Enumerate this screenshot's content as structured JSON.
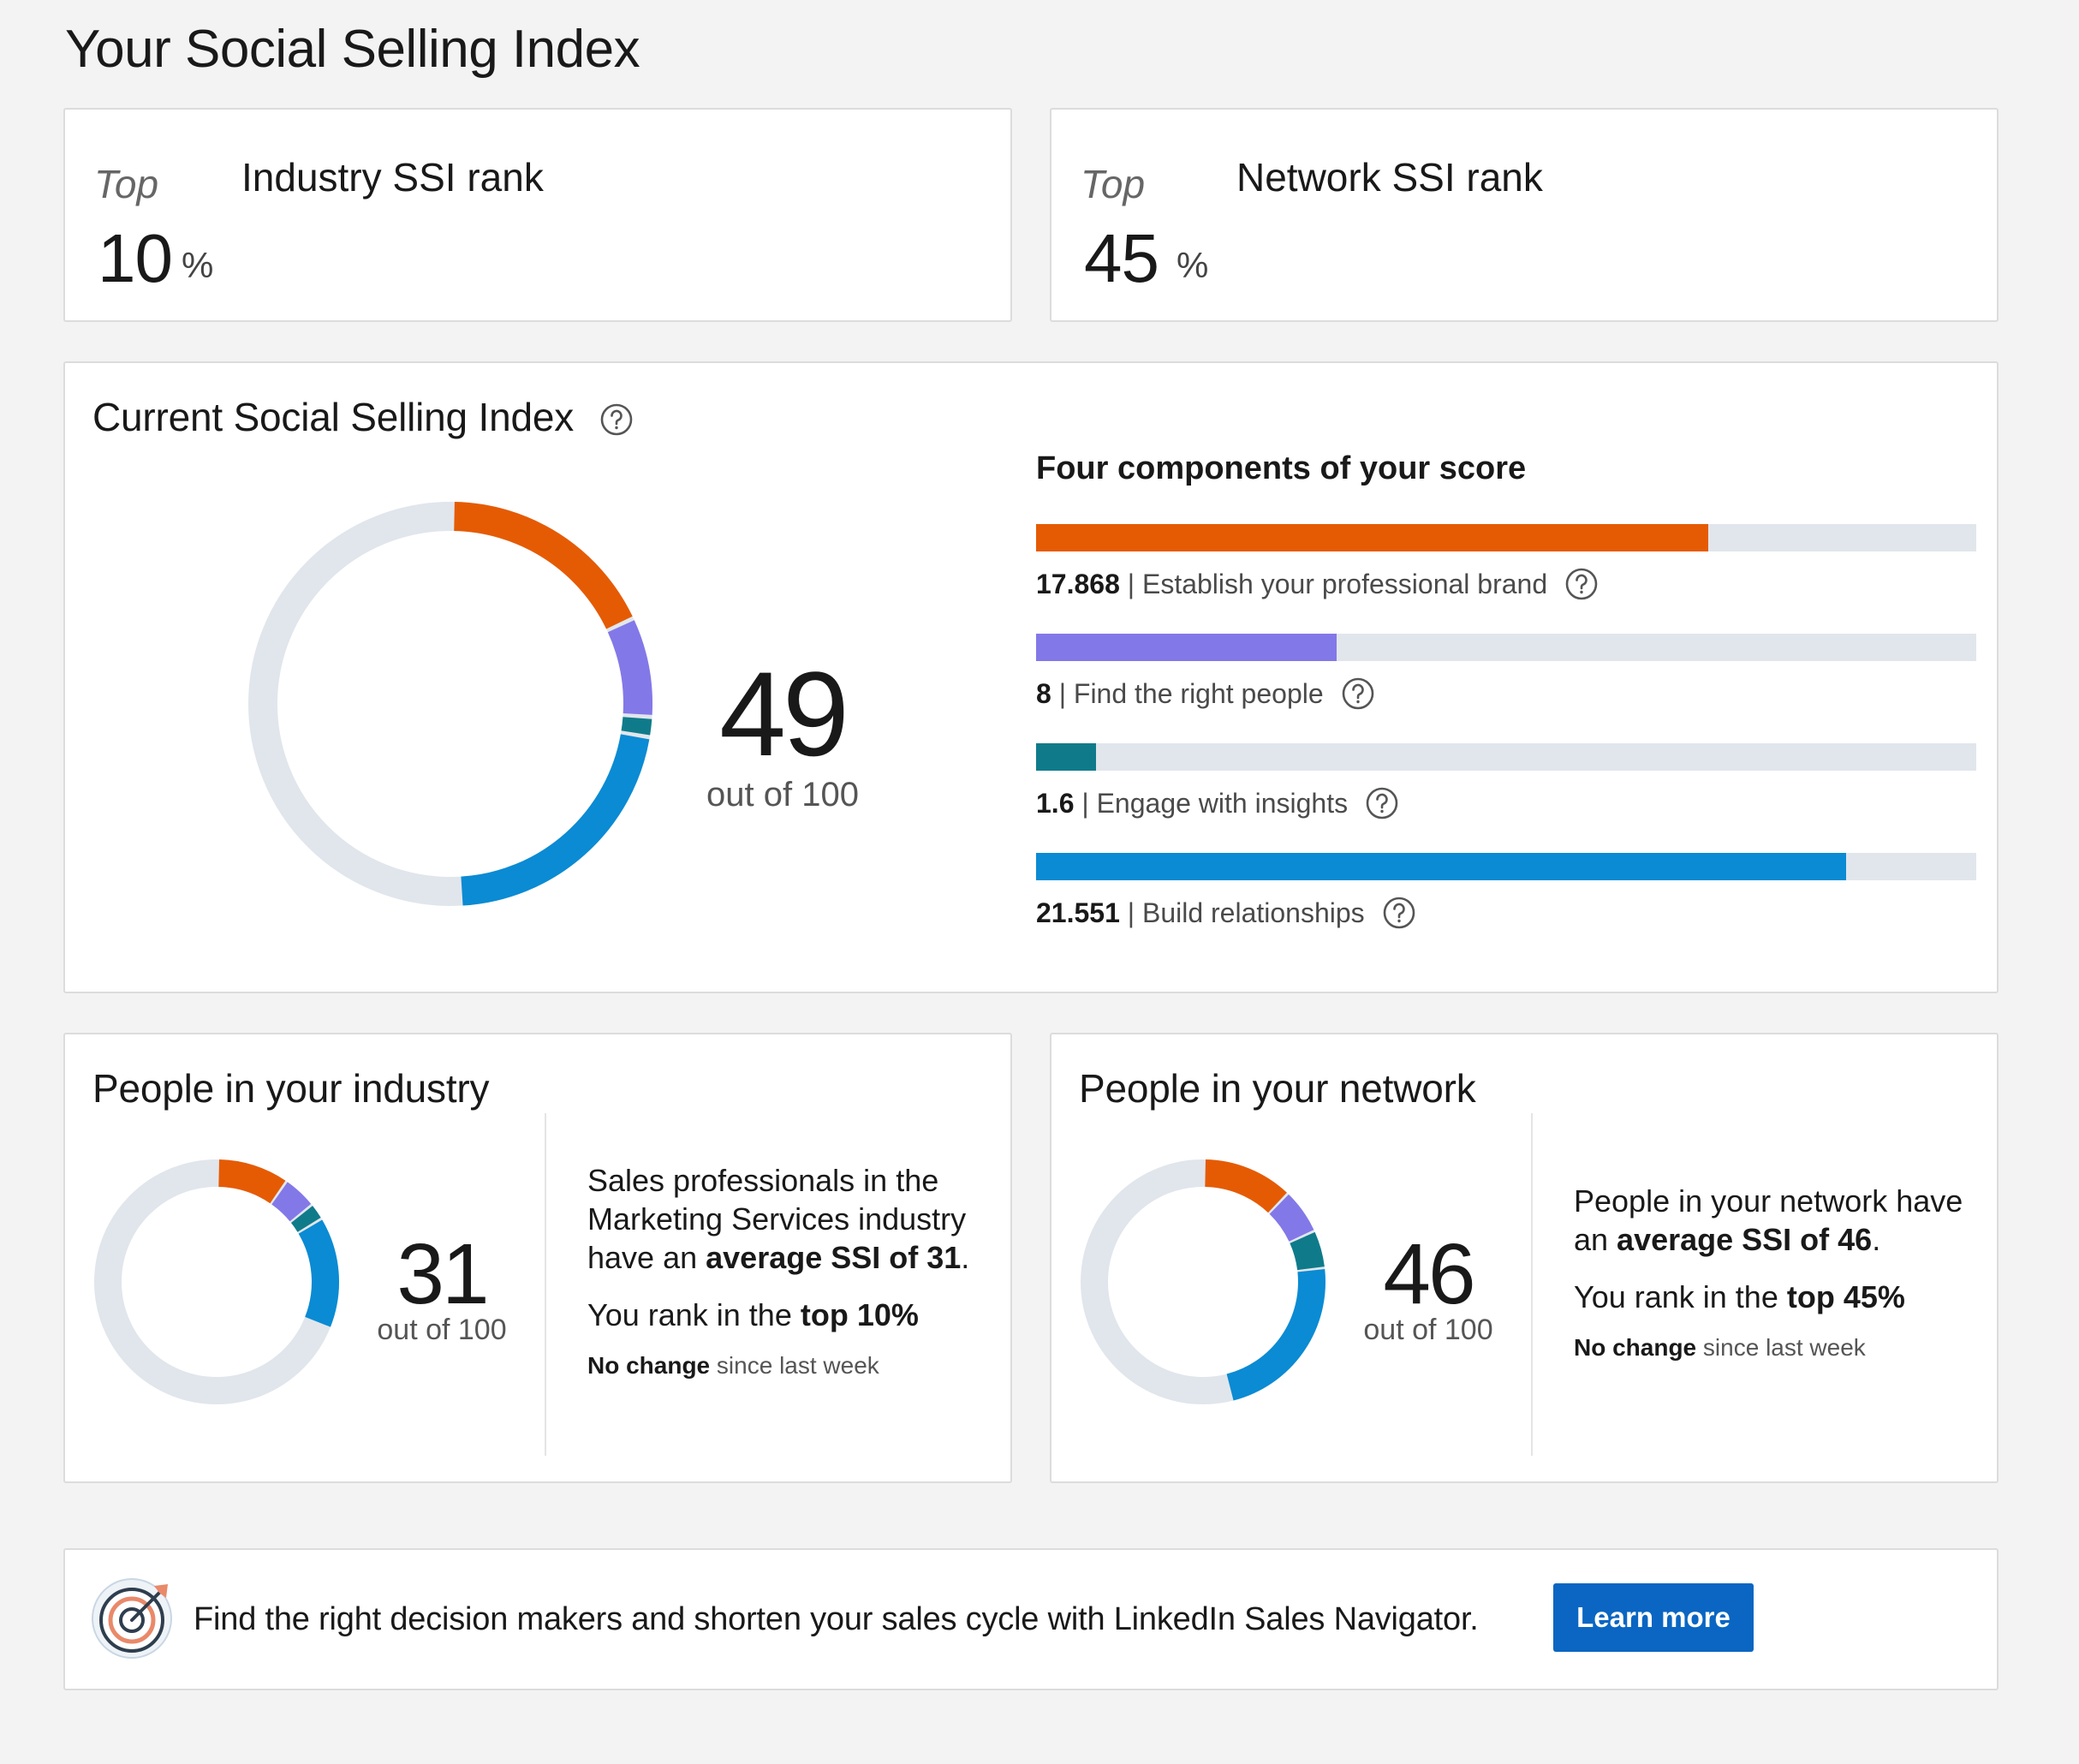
{
  "page": {
    "title": "Your Social Selling Index"
  },
  "industry_rank": {
    "top_label": "Top",
    "title": "Industry SSI rank",
    "value": "10",
    "unit": "%"
  },
  "network_rank": {
    "top_label": "Top",
    "title": "Network SSI rank",
    "value": "45",
    "unit": "%"
  },
  "current": {
    "title": "Current Social Selling Index",
    "score": "49",
    "out_of": "out of 100",
    "components_heading": "Four components of your score",
    "components": [
      {
        "value": "17.868",
        "label": "| Establish your professional brand",
        "fraction": 0.7147,
        "color": "#e55b04"
      },
      {
        "value": "8",
        "label": "| Find the right people",
        "fraction": 0.32,
        "color": "#8378e8"
      },
      {
        "value": "1.6",
        "label": "| Engage with insights",
        "fraction": 0.064,
        "color": "#0f7b8a"
      },
      {
        "value": "21.551",
        "label": "| Build relationships",
        "fraction": 0.862,
        "color": "#0a8bd3"
      }
    ],
    "donut_values": [
      17.868,
      8,
      1.6,
      21.551
    ]
  },
  "industry": {
    "title": "People in your industry",
    "score": "31",
    "out_of": "out of 100",
    "donut_values": [
      9.5,
      4.5,
      2.2,
      14.8
    ],
    "desc_line1": "Sales professionals in the",
    "desc_line2": "Marketing Services industry",
    "desc_line3_pre": "have an ",
    "desc_line3_bold": "average SSI of 31",
    "desc_line3_post": ".",
    "rank_pre": "You rank in the ",
    "rank_bold": "top 10%",
    "change_bold": "No change",
    "change_rest": " since last week"
  },
  "network": {
    "title": "People in your network",
    "score": "46",
    "out_of": "out of 100",
    "donut_values": [
      12,
      6,
      5,
      23
    ],
    "desc_line1": "People in your network have",
    "desc_line2_pre": "an ",
    "desc_line2_bold": "average SSI of 46",
    "desc_line2_post": ".",
    "rank_pre": "You rank in the ",
    "rank_bold": "top 45%",
    "change_bold": "No change",
    "change_rest": " since last week"
  },
  "promo": {
    "text": "Find the right decision makers and shorten your sales cycle with LinkedIn Sales Navigator.",
    "button": "Learn more"
  },
  "colors": {
    "brand": "#e55b04",
    "people": "#8378e8",
    "insights": "#0f7b8a",
    "relationships": "#0a8bd3",
    "track": "#e1e6ec",
    "button": "#0a66c2"
  },
  "icons": {
    "help": "question-circle-icon",
    "promo": "target-arrow-icon"
  }
}
